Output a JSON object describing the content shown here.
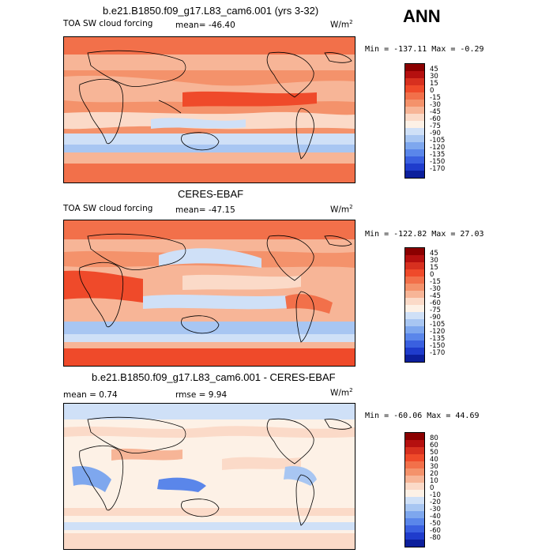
{
  "season": "ANN",
  "panels": [
    {
      "title": "b.e21.B1850.f09_g17.L83_cam6.001 (yrs 3-32)",
      "variable": "TOA SW cloud forcing",
      "stat1": "mean= -46.40",
      "stat2": "",
      "units": "W/m",
      "units_sup": "2",
      "minmax": "Min = -137.11 Max =  -0.29",
      "levels": [
        "45",
        "30",
        "15",
        "0",
        "-15",
        "-30",
        "-45",
        "-60",
        "-75",
        "-90",
        "-105",
        "-120",
        "-135",
        "-150",
        "-170"
      ]
    },
    {
      "title": "CERES-EBAF",
      "variable": "TOA SW cloud forcing",
      "stat1": "mean= -47.15",
      "stat2": "",
      "units": "W/m",
      "units_sup": "2",
      "minmax": "Min = -122.82 Max =  27.03",
      "levels": [
        "45",
        "30",
        "15",
        "0",
        "-15",
        "-30",
        "-45",
        "-60",
        "-75",
        "-90",
        "-105",
        "-120",
        "-135",
        "-150",
        "-170"
      ]
    },
    {
      "title": "b.e21.B1850.f09_g17.L83_cam6.001 - CERES-EBAF",
      "variable": "",
      "stat1": "mean =   0.74",
      "stat2": "rmse =   9.94",
      "units": "W/m",
      "units_sup": "2",
      "minmax": "Min = -60.06 Max =  44.69",
      "levels": [
        "80",
        "60",
        "50",
        "40",
        "30",
        "20",
        "10",
        "0",
        "-10",
        "-20",
        "-30",
        "-40",
        "-50",
        "-60",
        "-80"
      ]
    }
  ],
  "colors": {
    "forcing_scale": [
      "#8b0000",
      "#b5100f",
      "#d7301f",
      "#ef4a2a",
      "#f2704a",
      "#f4926b",
      "#f7b597",
      "#fbdac8",
      "#fdf1e6",
      "#cfe0f7",
      "#a8c6f2",
      "#7ea7ee",
      "#5a86ea",
      "#3a60e0",
      "#1f3ccc",
      "#0c1f9c"
    ],
    "diff_scale": [
      "#8b0000",
      "#b5100f",
      "#d7301f",
      "#ef4a2a",
      "#f2704a",
      "#f4926b",
      "#f7b597",
      "#fbdac8",
      "#fdf1e6",
      "#cfe0f7",
      "#a8c6f2",
      "#7ea7ee",
      "#5a86ea",
      "#3a60e0",
      "#1f3ccc",
      "#0c1f9c"
    ]
  }
}
